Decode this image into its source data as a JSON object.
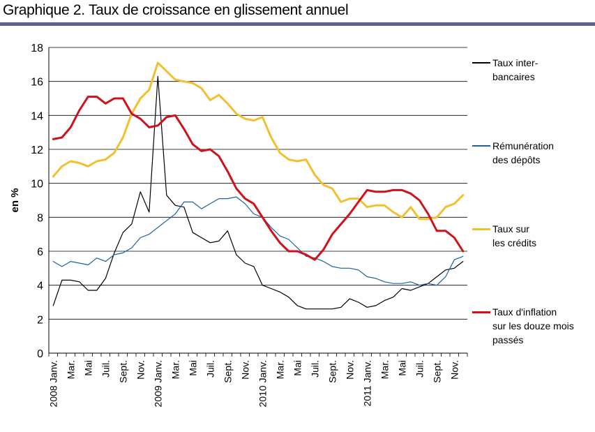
{
  "title": "Graphique 2. Taux de croissance en glissement annuel",
  "chart_data": {
    "type": "line",
    "ylabel": "en %",
    "ylim": [
      0,
      18
    ],
    "yticks": [
      0,
      2,
      4,
      6,
      8,
      10,
      12,
      14,
      16,
      18
    ],
    "grid": "horizontal",
    "legend_position": "right",
    "x": [
      "2008 Janv.",
      "Fév.",
      "Mar.",
      "Avr.",
      "Mai",
      "Juin",
      "Juil.",
      "Août",
      "Sept.",
      "Oct.",
      "Nov.",
      "Déc.",
      "2009 Janv.",
      "Fév.",
      "Mar.",
      "Avr.",
      "Mai",
      "Juin",
      "Juil.",
      "Août",
      "Sept.",
      "Oct.",
      "Nov.",
      "Déc.",
      "2010 Janv.",
      "Fév.",
      "Mar.",
      "Avr.",
      "Mai",
      "Juin",
      "Juil.",
      "Août",
      "Sept.",
      "Oct.",
      "Nov.",
      "Déc.",
      "2011 Janv.",
      "Fév.",
      "Mar.",
      "Avr.",
      "Mai",
      "Juin",
      "Juil.",
      "Août",
      "Sept.",
      "Oct.",
      "Nov.",
      "Déc."
    ],
    "xtick_labels": [
      "2008 Janv.",
      "Mar.",
      "Mai",
      "Juil.",
      "Sept.",
      "Nov.",
      "2009 Janv.",
      "Mar.",
      "Mai",
      "Juil.",
      "Sept.",
      "Nov.",
      "2010 Janv.",
      "Mar.",
      "Mai",
      "Juil.",
      "Sept.",
      "Nov.",
      "2011 Janv.",
      "Mar.",
      "Mai",
      "Juil.",
      "Sept.",
      "Nov."
    ],
    "series": [
      {
        "name": "Taux inter-\nbancaires",
        "color": "#000000",
        "width": 1.2,
        "values": [
          2.8,
          4.3,
          4.3,
          4.2,
          3.7,
          3.7,
          4.4,
          5.9,
          7.1,
          7.6,
          9.5,
          8.3,
          16.3,
          9.3,
          8.7,
          8.6,
          7.1,
          6.8,
          6.5,
          6.6,
          7.2,
          5.8,
          5.3,
          5.1,
          4.0,
          3.8,
          3.6,
          3.3,
          2.8,
          2.6,
          2.6,
          2.6,
          2.6,
          2.7,
          3.2,
          3.0,
          2.7,
          2.8,
          3.1,
          3.3,
          3.8,
          3.7,
          3.9,
          4.1,
          4.5,
          4.9,
          5.0,
          5.4
        ]
      },
      {
        "name": "Rémunération\ndes dépôts",
        "color": "#1f5fa3",
        "width": 1.2,
        "values": [
          5.4,
          5.1,
          5.4,
          5.3,
          5.2,
          5.6,
          5.4,
          5.8,
          5.9,
          6.2,
          6.8,
          7.0,
          7.4,
          7.8,
          8.2,
          8.9,
          8.9,
          8.5,
          8.8,
          9.1,
          9.1,
          9.2,
          8.8,
          8.2,
          8.0,
          7.4,
          6.9,
          6.7,
          6.2,
          5.7,
          5.6,
          5.4,
          5.1,
          5.0,
          5.0,
          4.9,
          4.5,
          4.4,
          4.2,
          4.1,
          4.1,
          4.2,
          4.0,
          4.1,
          4.0,
          4.5,
          5.5,
          5.7
        ]
      },
      {
        "name": "Taux sur\nles crédits",
        "color": "#f2c02e",
        "width": 3,
        "values": [
          10.4,
          11.0,
          11.3,
          11.2,
          11.0,
          11.3,
          11.4,
          11.8,
          12.7,
          14.1,
          15.0,
          15.5,
          17.1,
          16.6,
          16.1,
          16.0,
          15.9,
          15.6,
          14.9,
          15.2,
          14.7,
          14.1,
          13.8,
          13.7,
          13.9,
          12.7,
          11.8,
          11.4,
          11.3,
          11.4,
          10.5,
          9.9,
          9.7,
          8.9,
          9.1,
          9.1,
          8.6,
          8.7,
          8.7,
          8.3,
          8.0,
          8.6,
          7.9,
          7.9,
          8.0,
          8.6,
          8.8,
          9.3
        ]
      },
      {
        "name": "Taux d'inflation\nsur les douze mois\npassés",
        "color": "#d0101a",
        "width": 3,
        "values": [
          12.6,
          12.7,
          13.3,
          14.3,
          15.1,
          15.1,
          14.7,
          15.0,
          15.0,
          14.1,
          13.8,
          13.3,
          13.4,
          13.9,
          14.0,
          13.2,
          12.3,
          11.9,
          12.0,
          11.6,
          10.7,
          9.7,
          9.1,
          8.8,
          8.0,
          7.2,
          6.5,
          6.0,
          6.0,
          5.8,
          5.5,
          6.1,
          7.0,
          7.6,
          8.2,
          8.9,
          9.6,
          9.5,
          9.5,
          9.6,
          9.6,
          9.4,
          9.0,
          8.2,
          7.2,
          7.2,
          6.8,
          6.0
        ]
      }
    ]
  }
}
